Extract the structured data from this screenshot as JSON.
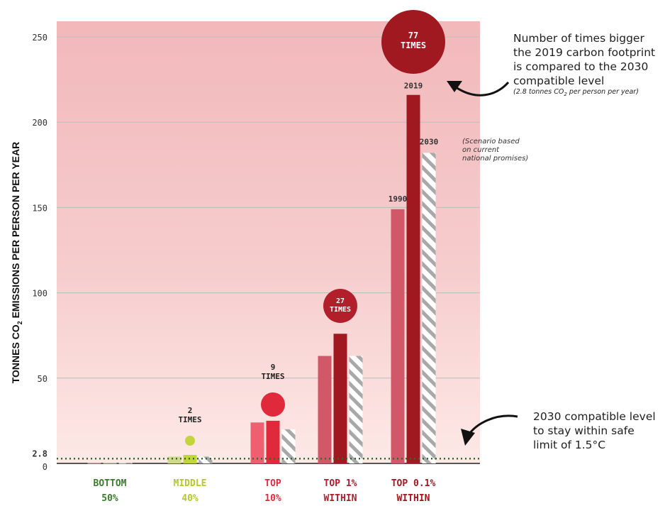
{
  "chart_data": {
    "type": "bar",
    "ylabel_parts": {
      "main": "TONNES CO",
      "sub": "2",
      "rest": " EMISSIONS PER PERSON PER YEAR"
    },
    "ylim": [
      0,
      260
    ],
    "yticks": [
      0,
      50,
      100,
      150,
      200,
      250
    ],
    "reference_line": {
      "value": 2.8,
      "label": "2.8"
    },
    "categories": [
      {
        "line1": "BOTTOM",
        "line2": "50%",
        "color": "#3a7d2a"
      },
      {
        "line1": "MIDDLE",
        "line2": "40%",
        "color": "#b5c92a"
      },
      {
        "line1": "TOP",
        "line2": "10%",
        "color": "#e02a3c"
      },
      {
        "line1": "TOP 1%",
        "line2": "WITHIN",
        "color": "#b01f2a"
      },
      {
        "line1": "TOP 0.1%",
        "line2": "WITHIN",
        "color": "#a01820"
      }
    ],
    "series": [
      {
        "name": "1990",
        "values": [
          0.3,
          4,
          24,
          63,
          149
        ]
      },
      {
        "name": "2019",
        "values": [
          0.3,
          5,
          25,
          76,
          216
        ]
      },
      {
        "name": "2030",
        "values": [
          0.3,
          4,
          20,
          63,
          182
        ]
      }
    ],
    "bar_colors": {
      "1990": [
        "#d9a8a0",
        "#cfd98a",
        "#ee6070",
        "#d05868",
        "#d05868"
      ],
      "2019": [
        "#c8d8a0",
        "#c3d53c",
        "#e02a3c",
        "#a01820",
        "#a01820"
      ]
    },
    "times_markers": [
      {
        "category": 1,
        "lines": [
          "2",
          "TIMES"
        ],
        "color": "#c3d53c"
      },
      {
        "category": 2,
        "lines": [
          "9",
          "TIMES"
        ],
        "color": "#e02a3c"
      },
      {
        "category": 3,
        "lines": [
          "27",
          "TIMES"
        ],
        "color": "#b01f2a"
      },
      {
        "category": 4,
        "lines": [
          "77",
          "TIMES"
        ],
        "color": "#a01820"
      }
    ],
    "bar_year_labels": {
      "1990": "1990",
      "2019": "2019",
      "2030": "2030"
    },
    "scenario_note": [
      "(Scenario based",
      "on current",
      "national promises)"
    ]
  },
  "callouts": {
    "top_main": [
      "Number of times bigger",
      "the 2019 carbon footprint",
      "is compared to the 2030",
      "compatible level"
    ],
    "top_note_pre": "(2.8 tonnes CO",
    "top_note_sub": "2",
    "top_note_post": " per person per year)",
    "bottom_main": [
      "2030 compatible level",
      "to stay within safe",
      "limit of 1.5°C"
    ]
  }
}
